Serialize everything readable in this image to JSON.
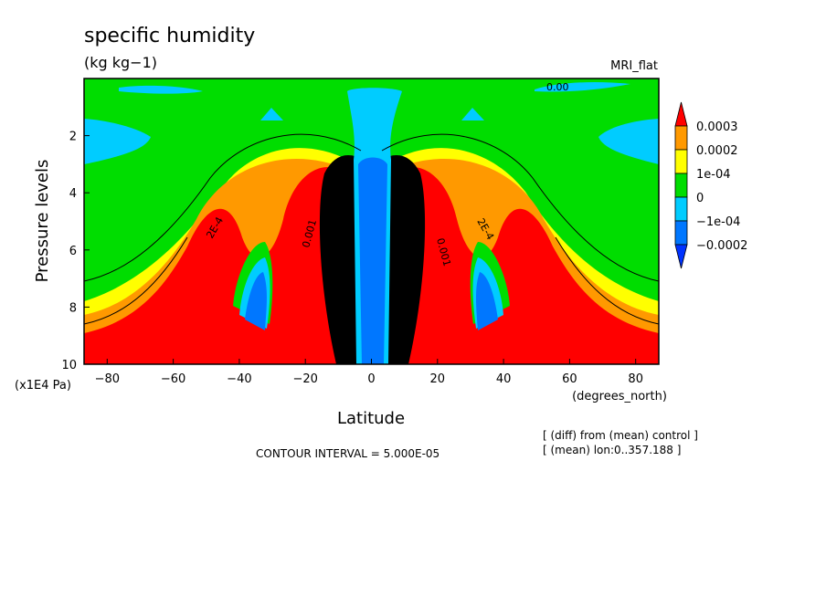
{
  "chart_data": {
    "type": "heatmap",
    "title": "specific humidity",
    "units": "(kg kg−1)",
    "model_label": "MRI_flat",
    "xlabel": "Latitude",
    "x_unit_label": "(degrees_north)",
    "ylabel": "Pressure levels",
    "y_unit_label": "(x1E4 Pa)",
    "xlim": [
      -87,
      87
    ],
    "ylim": [
      10,
      0
    ],
    "x_ticks": [
      -80,
      -60,
      -40,
      -20,
      0,
      20,
      40,
      60,
      80
    ],
    "x_tick_labels": [
      "−80",
      "−60",
      "−40",
      "−20",
      "0",
      "20",
      "40",
      "60",
      "80"
    ],
    "y_ticks": [
      2,
      4,
      6,
      8,
      10
    ],
    "y_tick_labels": [
      "2",
      "4",
      "6",
      "8",
      "10"
    ],
    "contour_interval_text": "CONTOUR INTERVAL = 5.000E-05",
    "notes": [
      "[ (diff) from (mean) control ]",
      "[ (mean) lon:0..357.188 ]"
    ],
    "contour_labels": [
      "0.00",
      "2E-4",
      "0.001",
      "0.001",
      "2E-4"
    ],
    "colorbar": {
      "labels": [
        "0.0003",
        "0.0002",
        "1e-04",
        "0",
        "−1e-04",
        "−0.0002"
      ],
      "colors": [
        "#ff0000",
        "#ff9900",
        "#ffff00",
        "#00dd00",
        "#00ccff",
        "#0077ff",
        "#0033ff"
      ]
    },
    "fill_colors": {
      "high": "#ff0000",
      "mid_high": "#ff9900",
      "mid": "#ffff00",
      "zero": "#00dd00",
      "neg": "#00ccff",
      "neg_mid": "#0077ff",
      "neg_high": "#0033ff"
    }
  }
}
